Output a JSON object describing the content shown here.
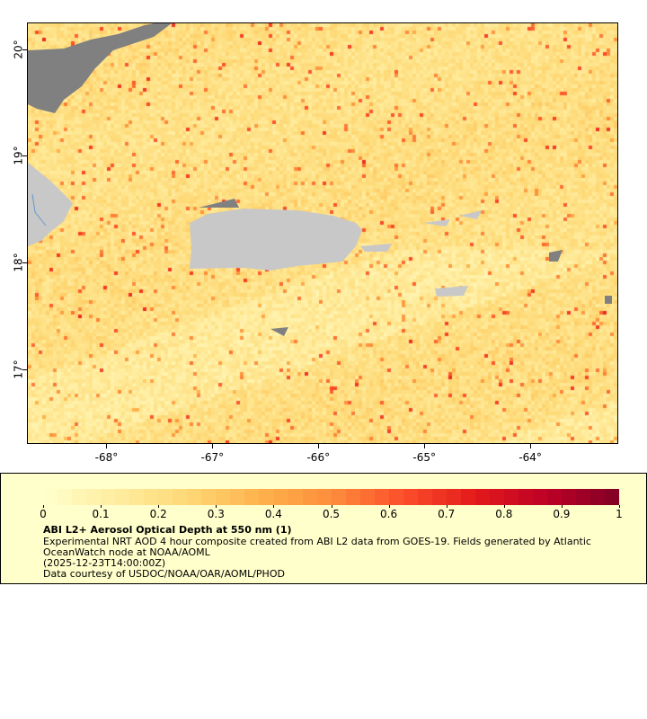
{
  "map": {
    "lon_ticks": [
      "-68°",
      "-67°",
      "-66°",
      "-65°",
      "-64°"
    ],
    "lon_values": [
      -68,
      -67,
      -66,
      -65,
      -64
    ],
    "lat_ticks": [
      "20°",
      "19°",
      "18°",
      "17°"
    ],
    "lat_values": [
      20,
      19,
      18,
      17
    ],
    "lon_range": [
      -68.75,
      -63.17
    ],
    "lat_range": [
      16.3,
      20.25
    ],
    "colors": {
      "land": "#c8c8c8",
      "no_data": "#808080",
      "coast": "#6699cc"
    }
  },
  "legend": {
    "colorbar_range": [
      0,
      1
    ],
    "colorbar_labels": [
      "0",
      "0.1",
      "0.2",
      "0.3",
      "0.4",
      "0.5",
      "0.6",
      "0.7",
      "0.8",
      "0.9",
      "1"
    ],
    "colormap": [
      "#ffffcc",
      "#ffeda0",
      "#fed976",
      "#feb24c",
      "#fd8d3c",
      "#fc4e2a",
      "#e31a1c",
      "#bd0026",
      "#800026"
    ],
    "title": "ABI L2+ Aerosol Optical Depth at 550 nm (1)",
    "line1": "Experimental NRT AOD 4 hour composite created from ABI L2 data from GOES-19. Fields generated by Atlantic",
    "line2": "OceanWatch node at NOAA/AOML",
    "line3": "(2025-12-23T14:00:00Z)",
    "line4": "Data courtesy of USDOC/NOAA/OAR/AOML/PHOD",
    "background": "#ffffcc"
  }
}
